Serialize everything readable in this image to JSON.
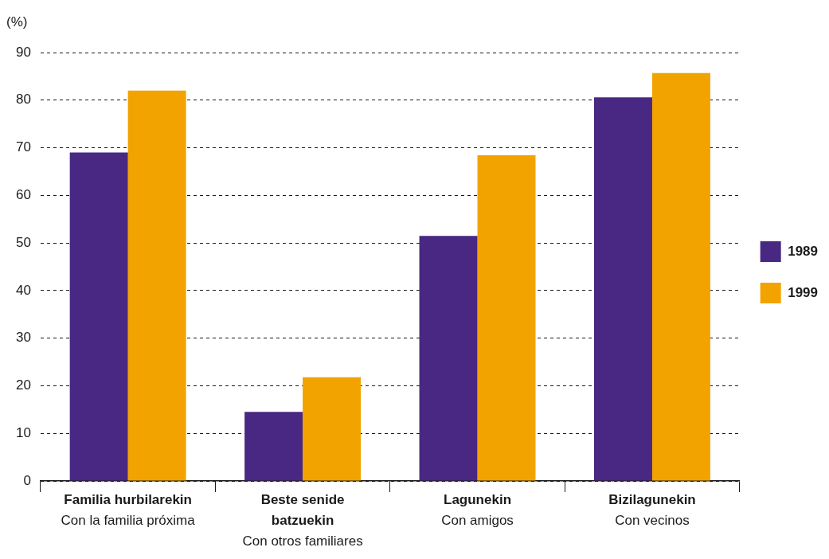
{
  "chart_data": {
    "type": "bar",
    "ylabel": "(%)",
    "categories": [
      "Familia hurbilarekin\nCon la familia próxima",
      "Beste senide\nbatzuekin\nCon otros familiares",
      "Lagunekin\nCon amigos",
      "Bizilagunekin\nCon vecinos"
    ],
    "series": [
      {
        "name": "1989",
        "color": "#482882",
        "values": [
          69,
          14.5,
          51.5,
          80.6
        ]
      },
      {
        "name": "1999",
        "color": "#f2a300",
        "values": [
          82,
          21.8,
          68.4,
          85.7
        ]
      }
    ],
    "ylim": [
      0,
      90
    ],
    "yticks": [
      0,
      10,
      20,
      30,
      40,
      50,
      60,
      70,
      80,
      90
    ],
    "grid": "y",
    "legend": "right"
  }
}
